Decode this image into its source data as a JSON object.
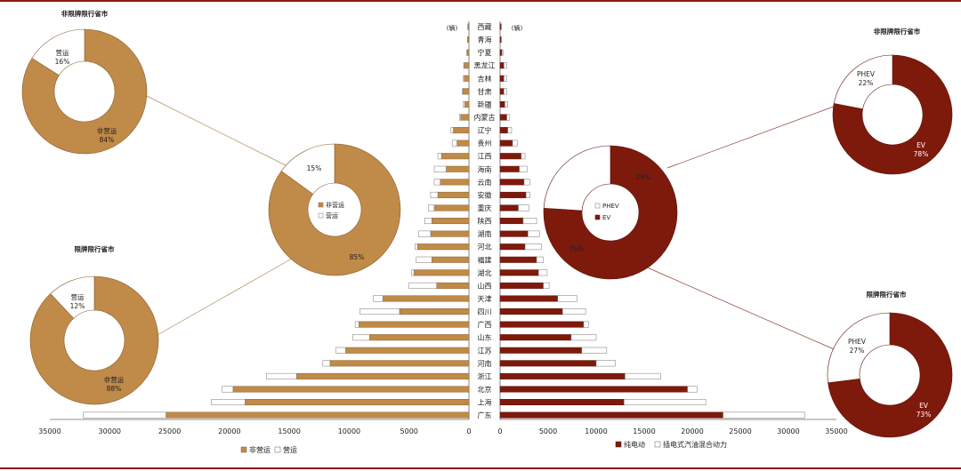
{
  "colors": {
    "fei": "#c08a48",
    "ying": "#ffffff",
    "ev": "#7e1a0c",
    "phev": "#ffffff",
    "stroke": "#8a6030",
    "frame": "#8b1a10"
  },
  "chart_data": [
    {
      "type": "bar",
      "name": "left-butterfly",
      "orientation": "horizontal-reversed",
      "unit_label": "(辆)",
      "xlim": [
        0,
        35000
      ],
      "ticks": [
        35000,
        30000,
        25000,
        20000,
        15000,
        10000,
        5000,
        0
      ],
      "categories": [
        "西藏",
        "青海",
        "宁夏",
        "黑龙江",
        "吉林",
        "甘肃",
        "新疆",
        "内蒙古",
        "辽宁",
        "贵州",
        "江西",
        "海南",
        "云南",
        "安徽",
        "重庆",
        "陕西",
        "湖南",
        "河北",
        "福建",
        "湖北",
        "山西",
        "天津",
        "四川",
        "广西",
        "山东",
        "江苏",
        "河南",
        "浙江",
        "北京",
        "上海",
        "广东"
      ],
      "series": [
        {
          "name": "非营运",
          "values": [
            80,
            100,
            150,
            400,
            400,
            500,
            350,
            700,
            1300,
            1000,
            2300,
            1900,
            2400,
            2600,
            2900,
            3100,
            3200,
            4300,
            3100,
            4600,
            2700,
            7200,
            5800,
            9200,
            8300,
            10300,
            11600,
            14400,
            19700,
            18700,
            25300
          ]
        },
        {
          "name": "营运",
          "values": [
            20,
            20,
            30,
            40,
            60,
            60,
            150,
            100,
            200,
            400,
            300,
            1000,
            500,
            600,
            500,
            600,
            1000,
            200,
            1300,
            200,
            2300,
            800,
            3300,
            300,
            1400,
            800,
            600,
            2500,
            900,
            2800,
            6900
          ]
        }
      ],
      "legend": [
        "非营运",
        "营运"
      ]
    },
    {
      "type": "bar",
      "name": "right-butterfly",
      "orientation": "horizontal",
      "unit_label": "(辆)",
      "xlim": [
        0,
        35000
      ],
      "ticks": [
        0,
        5000,
        10000,
        15000,
        20000,
        25000,
        30000,
        35000
      ],
      "categories": [
        "西藏",
        "青海",
        "宁夏",
        "黑龙江",
        "吉林",
        "甘肃",
        "新疆",
        "内蒙古",
        "辽宁",
        "贵州",
        "江西",
        "海南",
        "云南",
        "安徽",
        "重庆",
        "陕西",
        "湖南",
        "河北",
        "福建",
        "湖北",
        "山西",
        "天津",
        "四川",
        "广西",
        "山东",
        "江苏",
        "河南",
        "浙江",
        "北京",
        "上海",
        "广东"
      ],
      "series": [
        {
          "name": "纯电动",
          "values": [
            100,
            100,
            200,
            400,
            400,
            400,
            500,
            700,
            800,
            1300,
            2200,
            2000,
            2500,
            2700,
            1900,
            2400,
            2900,
            2600,
            3800,
            4000,
            4500,
            6000,
            6500,
            8700,
            7400,
            8500,
            10000,
            13000,
            19500,
            12900,
            23200
          ]
        },
        {
          "name": "插电式汽油混合动力",
          "values": [
            50,
            70,
            100,
            300,
            300,
            300,
            300,
            300,
            400,
            500,
            400,
            800,
            600,
            400,
            1100,
            1400,
            1200,
            1700,
            700,
            900,
            600,
            2000,
            2400,
            500,
            2600,
            2600,
            2000,
            3700,
            1000,
            8500,
            8500
          ]
        }
      ],
      "legend": [
        "纯电动",
        "插电式汽油混合动力"
      ]
    },
    {
      "type": "pie",
      "name": "fei-xianpai-yingyun",
      "title": "非限牌限行省市",
      "slices": [
        {
          "label": "非营运",
          "value": 84,
          "text": "84%"
        },
        {
          "label": "营运",
          "value": 16,
          "text": "16%"
        }
      ]
    },
    {
      "type": "pie",
      "name": "xianpai-yingyun",
      "title": "限牌限行省市",
      "slices": [
        {
          "label": "非营运",
          "value": 88,
          "text": "88%"
        },
        {
          "label": "营运",
          "value": 12,
          "text": "12%"
        }
      ]
    },
    {
      "type": "pie",
      "name": "total-yingyun",
      "title": "",
      "legend": [
        "非营运",
        "营运"
      ],
      "slices": [
        {
          "label": "非营运",
          "value": 85,
          "text": "85%"
        },
        {
          "label": "营运",
          "value": 15,
          "text": "15%"
        }
      ]
    },
    {
      "type": "pie",
      "name": "total-powertrain",
      "title": "",
      "legend": [
        "PHEV",
        "EV"
      ],
      "slices": [
        {
          "label": "EV",
          "value": 76,
          "text": "76%"
        },
        {
          "label": "PHEV",
          "value": 24,
          "text": "24%"
        }
      ]
    },
    {
      "type": "pie",
      "name": "fei-xianpai-powertrain",
      "title": "非限牌限行省市",
      "slices": [
        {
          "label": "EV",
          "value": 78,
          "text": "78%"
        },
        {
          "label": "PHEV",
          "value": 22,
          "text": "22%"
        }
      ]
    },
    {
      "type": "pie",
      "name": "xianpai-powertrain",
      "title": "限牌限行省市",
      "slices": [
        {
          "label": "EV",
          "value": 73,
          "text": "73%"
        },
        {
          "label": "PHEV",
          "value": 27,
          "text": "27%"
        }
      ]
    }
  ]
}
